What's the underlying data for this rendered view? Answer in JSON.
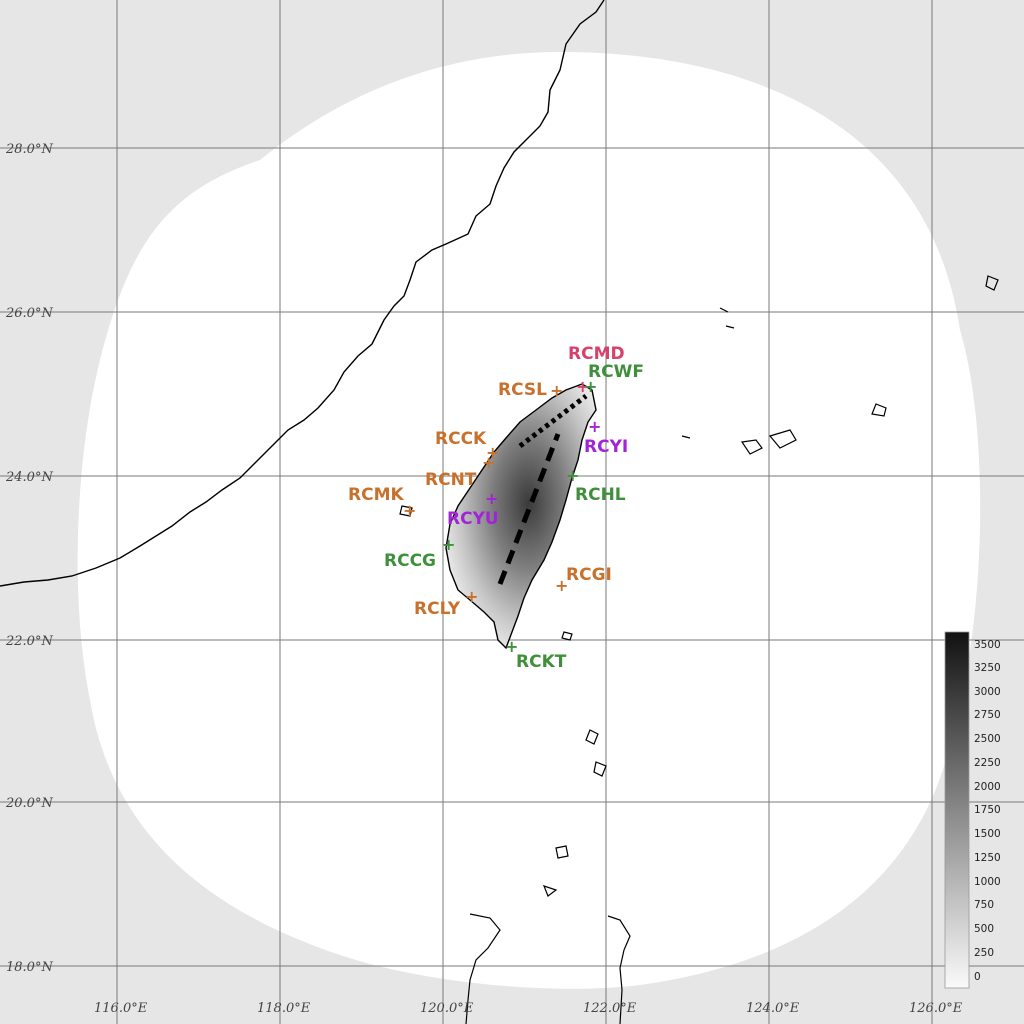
{
  "colors": {
    "background_outside": "#e6e6e6",
    "coverage_domain": "#ffffff",
    "gridline": "#7a7a7a",
    "coastline": "#000000",
    "orange_site": "#c8712c",
    "green_site": "#3f8f3b",
    "purple_site": "#a323d6",
    "pink_site": "#d6416d"
  },
  "map": {
    "latitude_labels": [
      "28.0°N",
      "26.0°N",
      "24.0°N",
      "22.0°N",
      "20.0°N",
      "18.0°N"
    ],
    "longitude_labels": [
      "116.0°E",
      "118.0°E",
      "120.0°E",
      "122.0°E",
      "124.0°E",
      "126.0°E"
    ],
    "sites": [
      {
        "id": "RCMD",
        "color": "pink",
        "lon": 121.9,
        "lat": 25.2
      },
      {
        "id": "RCWF",
        "color": "green",
        "lon": 121.8,
        "lat": 25.07
      },
      {
        "id": "RCSL",
        "color": "orange",
        "lon": 121.4,
        "lat": 25.07
      },
      {
        "id": "RCYI",
        "color": "purple",
        "lon": 121.9,
        "lat": 24.6
      },
      {
        "id": "RCCK",
        "color": "orange",
        "lon": 120.6,
        "lat": 24.3
      },
      {
        "id": "RCNT",
        "color": "orange",
        "lon": 120.5,
        "lat": 24.15
      },
      {
        "id": "RCHL",
        "color": "green",
        "lon": 121.6,
        "lat": 24.0
      },
      {
        "id": "RCMK",
        "color": "orange",
        "lon": 119.6,
        "lat": 23.55
      },
      {
        "id": "RCYU",
        "color": "purple",
        "lon": 120.6,
        "lat": 23.7
      },
      {
        "id": "RCCG",
        "color": "green",
        "lon": 120.1,
        "lat": 23.15
      },
      {
        "id": "RCGI",
        "color": "orange",
        "lon": 121.5,
        "lat": 22.65
      },
      {
        "id": "RCLY",
        "color": "orange",
        "lon": 120.35,
        "lat": 22.5
      },
      {
        "id": "RCKT",
        "color": "green",
        "lon": 120.8,
        "lat": 21.9
      }
    ]
  },
  "colorbar": {
    "ticks": [
      "3500",
      "3250",
      "3000",
      "2750",
      "2500",
      "2250",
      "2000",
      "1750",
      "1500",
      "1250",
      "1000",
      "750",
      "500",
      "250",
      "0"
    ]
  }
}
